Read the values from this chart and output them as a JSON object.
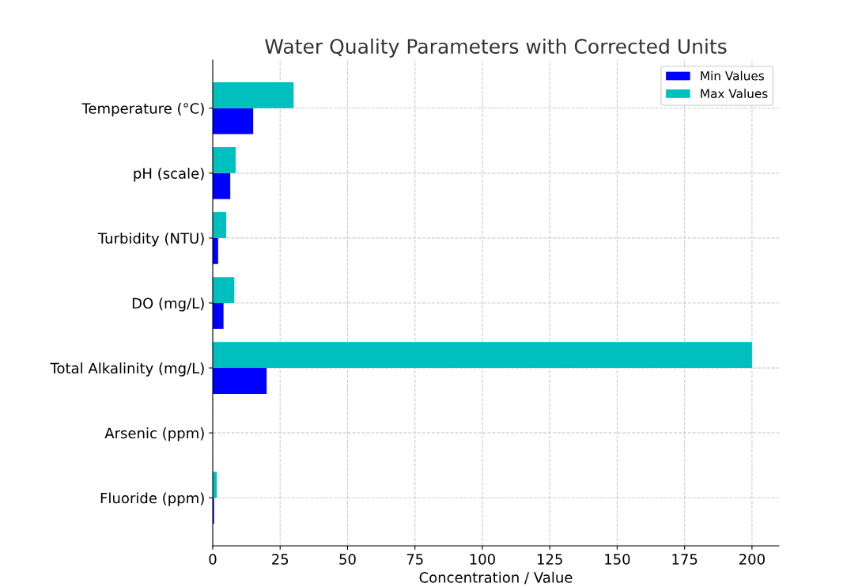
{
  "chart_data": {
    "type": "bar",
    "orientation": "horizontal",
    "title": "Water Quality Parameters with Corrected Units",
    "xlabel": "Concentration / Value",
    "categories": [
      "Temperature (°C)",
      "pH (scale)",
      "Turbidity (NTU)",
      "DO (mg/L)",
      "Total Alkalinity (mg/L)",
      "Arsenic (ppm)",
      "Fluoride (ppm)"
    ],
    "series": [
      {
        "name": "Min Values",
        "color": "#0000ff",
        "values": [
          15,
          6.5,
          2,
          4,
          20,
          0,
          0.5
        ]
      },
      {
        "name": "Max Values",
        "color": "#00bfbf",
        "values": [
          30,
          8.5,
          5,
          8,
          200,
          0,
          1.5
        ]
      }
    ],
    "xlim": [
      0,
      210
    ],
    "xticks": [
      0,
      25,
      50,
      75,
      100,
      125,
      150,
      175,
      200
    ],
    "grid": true,
    "legend": "top right"
  }
}
